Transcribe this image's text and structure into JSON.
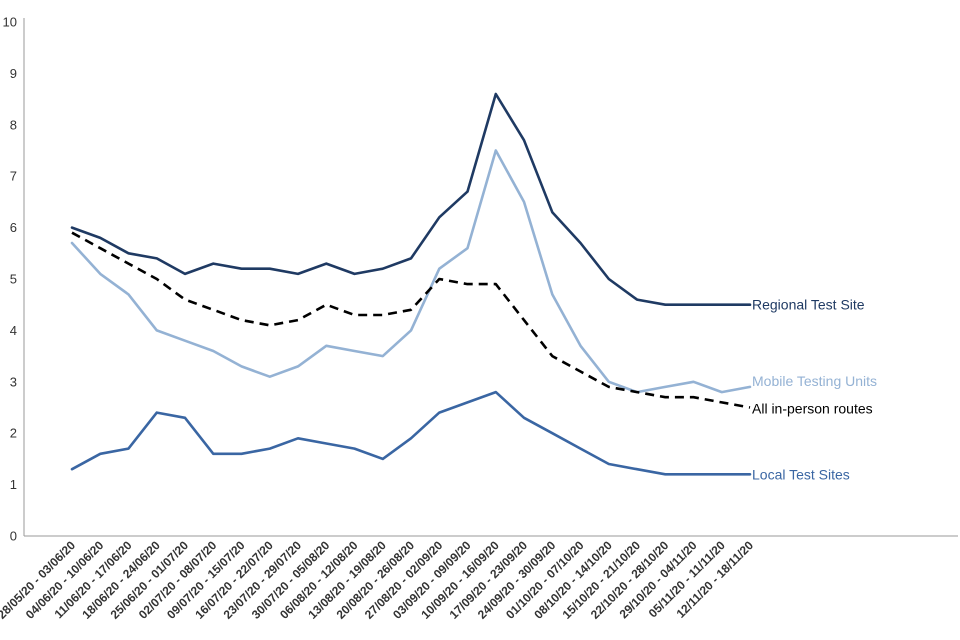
{
  "chart_data": {
    "type": "line",
    "title": "",
    "xlabel": "",
    "ylabel": "",
    "ylim": [
      0,
      10
    ],
    "yticks": [
      "0",
      "1",
      "2",
      "3",
      "4",
      "5",
      "6",
      "7",
      "8",
      "9",
      "10"
    ],
    "categories": [
      "28/05/20 - 03/06/20",
      "04/06/20 - 10/06/20",
      "11/06/20 - 17/06/20",
      "18/06/20 - 24/06/20",
      "25/06/20 - 01/07/20",
      "02/07/20 - 08/07/20",
      "09/07/20 - 15/07/20",
      "16/07/20 - 22/07/20",
      "23/07/20 - 29/07/20",
      "30/07/20 - 05/08/20",
      "06/08/20 - 12/08/20",
      "13/08/20 - 19/08/20",
      "20/08/20 - 26/08/20",
      "27/08/20 - 02/09/20",
      "03/09/20 - 09/09/20",
      "10/09/20 - 16/09/20",
      "17/09/20 - 23/09/20",
      "24/09/20 - 30/09/20",
      "01/10/20 - 07/10/20",
      "08/10/20 - 14/10/20",
      "15/10/20 - 21/10/20",
      "22/10/20 - 28/10/20",
      "29/10/20 - 04/11/20",
      "05/11/20 - 11/11/20",
      "12/11/20 - 18/11/20"
    ],
    "series": [
      {
        "name": "Regional Test Site",
        "color": "#1f3a63",
        "dashed": false,
        "values": [
          6.0,
          5.8,
          5.5,
          5.4,
          5.1,
          5.3,
          5.2,
          5.2,
          5.1,
          5.3,
          5.1,
          5.2,
          5.4,
          6.2,
          6.7,
          8.6,
          7.7,
          6.3,
          5.7,
          5.0,
          4.6,
          4.5,
          4.5,
          4.5,
          4.5
        ]
      },
      {
        "name": "Mobile Testing Units",
        "color": "#94b2d4",
        "dashed": false,
        "values": [
          5.7,
          5.1,
          4.7,
          4.0,
          3.8,
          3.6,
          3.3,
          3.1,
          3.3,
          3.7,
          3.6,
          3.5,
          4.0,
          5.2,
          5.6,
          7.5,
          6.5,
          4.7,
          3.7,
          3.0,
          2.8,
          2.9,
          3.0,
          2.8,
          2.9
        ]
      },
      {
        "name": "All in-person routes",
        "color": "#000000",
        "dashed": true,
        "values": [
          5.9,
          5.6,
          5.3,
          5.0,
          4.6,
          4.4,
          4.2,
          4.1,
          4.2,
          4.5,
          4.3,
          4.3,
          4.4,
          5.0,
          4.9,
          4.9,
          4.2,
          3.5,
          3.2,
          2.9,
          2.8,
          2.7,
          2.7,
          2.6,
          2.5
        ]
      },
      {
        "name": "Local Test Sites",
        "color": "#3a66a3",
        "dashed": false,
        "values": [
          1.3,
          1.6,
          1.7,
          2.4,
          2.3,
          1.6,
          1.6,
          1.7,
          1.9,
          1.8,
          1.7,
          1.5,
          1.9,
          2.4,
          2.6,
          2.8,
          2.3,
          2.0,
          1.7,
          1.4,
          1.3,
          1.2,
          1.2,
          1.2,
          1.2
        ]
      }
    ]
  }
}
